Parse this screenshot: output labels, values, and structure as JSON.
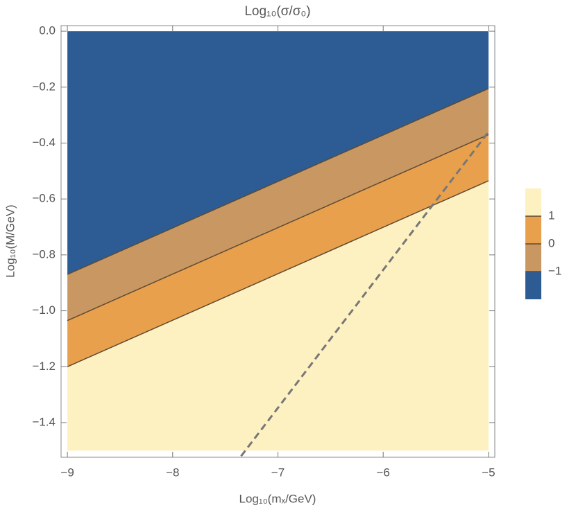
{
  "chart_data": {
    "type": "contour",
    "title": "Log₁₀(σ/σ₀)",
    "x_label": "Log₁₀(mₓ/GeV)",
    "y_label": "Log₁₀(M/GeV)",
    "xlim": [
      -9.06,
      -4.94
    ],
    "ylim": [
      -1.524,
      0.02
    ],
    "xticks": [
      {
        "value": -9,
        "label": "−9"
      },
      {
        "value": -8,
        "label": "−8"
      },
      {
        "value": -7,
        "label": "−7"
      },
      {
        "value": -6,
        "label": "−6"
      },
      {
        "value": -5,
        "label": "−5"
      }
    ],
    "yticks": [
      {
        "value": 0,
        "label": "0.0"
      },
      {
        "value": -0.2,
        "label": "−0.2"
      },
      {
        "value": -0.4,
        "label": "−0.4"
      },
      {
        "value": -0.6,
        "label": "−0.6"
      },
      {
        "value": -0.8,
        "label": "−0.8"
      },
      {
        "value": -1.0,
        "label": "−1.0"
      },
      {
        "value": -1.2,
        "label": "−1.2"
      },
      {
        "value": -1.4,
        "label": "−1.4"
      }
    ],
    "domain": {
      "x": [
        -9,
        -5
      ],
      "y": [
        -1.5,
        0
      ]
    },
    "region_colors": [
      "#2d5b94",
      "#c99862",
      "#e9a04c",
      "#fdf0c1"
    ],
    "contour_color": "#5e4a33",
    "contours": [
      {
        "level": {
          "value": -1,
          "label": "−1"
        },
        "x": [
          -9,
          -5
        ],
        "y": [
          -0.87,
          -0.205
        ]
      },
      {
        "level": 0,
        "x": [
          -9,
          -5
        ],
        "y": [
          -1.035,
          -0.37
        ]
      },
      {
        "level": 1,
        "x": [
          -9,
          -5
        ],
        "y": [
          -1.2,
          -0.535
        ]
      }
    ],
    "dashed_line": {
      "color": "#777777",
      "x": [
        -7.35,
        -5
      ],
      "y": [
        -1.52,
        -0.36
      ]
    }
  }
}
